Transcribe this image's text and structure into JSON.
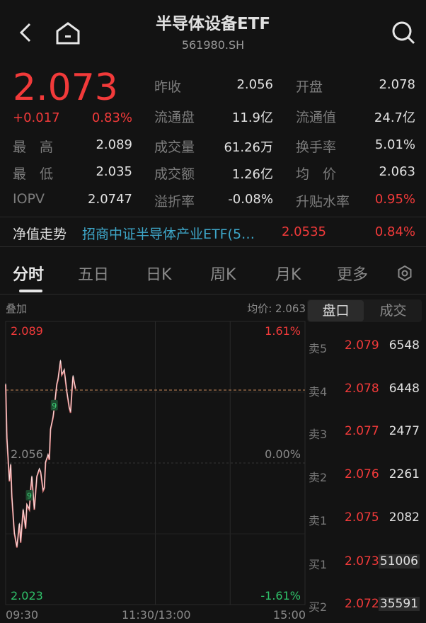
{
  "header": {
    "title": "半导体设备ETF",
    "code": "561980.SH",
    "back_icon": "chevron-left-icon",
    "home_icon": "home-icon",
    "search_icon": "search-icon"
  },
  "quote": {
    "price": "2.073",
    "change": "+0.017",
    "change_pct": "0.83%",
    "up_color": "#f23a3a",
    "down_color": "#2fc26a"
  },
  "stats": [
    [
      {
        "label": "昨收",
        "value": "2.056"
      },
      {
        "label": "开盘",
        "value": "2.078"
      }
    ],
    [
      {
        "label": "流通盘",
        "value": "11.9亿"
      },
      {
        "label": "流通值",
        "value": "24.7亿"
      }
    ],
    [
      {
        "label": "最　高",
        "value": "2.089"
      },
      {
        "label": "成交量",
        "value": "61.26万"
      },
      {
        "label": "换手率",
        "value": "5.01%"
      }
    ],
    [
      {
        "label": "最　低",
        "value": "2.035"
      },
      {
        "label": "成交额",
        "value": "1.26亿"
      },
      {
        "label": "均　价",
        "value": "2.063"
      }
    ],
    [
      {
        "label": "IOPV",
        "value": "2.0747"
      },
      {
        "label": "溢折率",
        "value": "-0.08%"
      },
      {
        "label": "升贴水率",
        "value": "0.95%"
      }
    ]
  ],
  "nav": {
    "label": "净值走势",
    "fund": "招商中证半导体产业ETF(5…",
    "value": "2.0535",
    "pct": "0.84%"
  },
  "tabs": [
    {
      "label": "分时",
      "active": true
    },
    {
      "label": "五日"
    },
    {
      "label": "日K"
    },
    {
      "label": "周K"
    },
    {
      "label": "月K"
    },
    {
      "label": "更多"
    }
  ],
  "settings_icon": "settings-hexagon-icon",
  "chart_toolbar": {
    "overlay": "叠加",
    "avg_price": "均价: 2.063"
  },
  "chart_data": {
    "type": "line",
    "y_left_ticks": {
      "top": "2.089",
      "mid": "2.056",
      "bottom": "2.023"
    },
    "y_right_ticks": {
      "top": "1.61%",
      "mid": "0.00%",
      "bottom": "-1.61%"
    },
    "x_ticks": [
      "09:30",
      "11:30/13:00",
      "15:00"
    ],
    "ylim": [
      2.023,
      2.089
    ],
    "prev_close": 2.056,
    "current": 2.073,
    "x": [
      "09:30",
      "09:31",
      "09:33",
      "09:34",
      "09:35",
      "09:37",
      "09:39",
      "09:41",
      "09:42",
      "09:44",
      "09:46",
      "09:47",
      "09:49",
      "09:50",
      "09:51",
      "09:53",
      "09:55",
      "09:57",
      "09:58",
      "10:00",
      "10:01",
      "10:02",
      "10:04",
      "10:05",
      "10:06",
      "10:08",
      "10:09",
      "10:11",
      "10:12",
      "10:14",
      "10:15",
      "10:16",
      "10:17",
      "10:19",
      "10:21",
      "10:22",
      "10:23",
      "10:24",
      "10:26"
    ],
    "price": [
      2.0743,
      2.0616,
      2.0517,
      2.0556,
      2.0479,
      2.0396,
      2.0363,
      2.0418,
      2.0374,
      2.0451,
      2.0407,
      2.0462,
      2.0451,
      2.0495,
      2.0528,
      2.0451,
      2.0528,
      2.0545,
      2.0539,
      2.0495,
      2.0501,
      2.0561,
      2.0578,
      2.0567,
      2.0638,
      2.0666,
      2.0688,
      2.0743,
      2.0754,
      2.0798,
      2.0765,
      2.077,
      2.0776,
      2.0726,
      2.0688,
      2.0677,
      2.0721,
      2.0762,
      2.0732
    ],
    "markers": [
      {
        "time": "09:49",
        "price": 2.0484,
        "label": "9"
      },
      {
        "time": "10:09",
        "price": 2.0694,
        "label": "9"
      }
    ],
    "line_color": "#e07a7a",
    "grid": true
  },
  "orderbook": {
    "tabs": [
      {
        "label": "盘口",
        "active": true
      },
      {
        "label": "成交"
      }
    ],
    "rows": [
      {
        "label": "卖5",
        "price": "2.079",
        "volume": "6548"
      },
      {
        "label": "卖4",
        "price": "2.078",
        "volume": "6448"
      },
      {
        "label": "卖3",
        "price": "2.077",
        "volume": "2477"
      },
      {
        "label": "卖2",
        "price": "2.076",
        "volume": "2261"
      },
      {
        "label": "卖1",
        "price": "2.075",
        "volume": "2082"
      },
      {
        "label": "买1",
        "price": "2.073",
        "volume": "51006"
      },
      {
        "label": "买2",
        "price": "2.072",
        "volume": "35591"
      }
    ]
  }
}
